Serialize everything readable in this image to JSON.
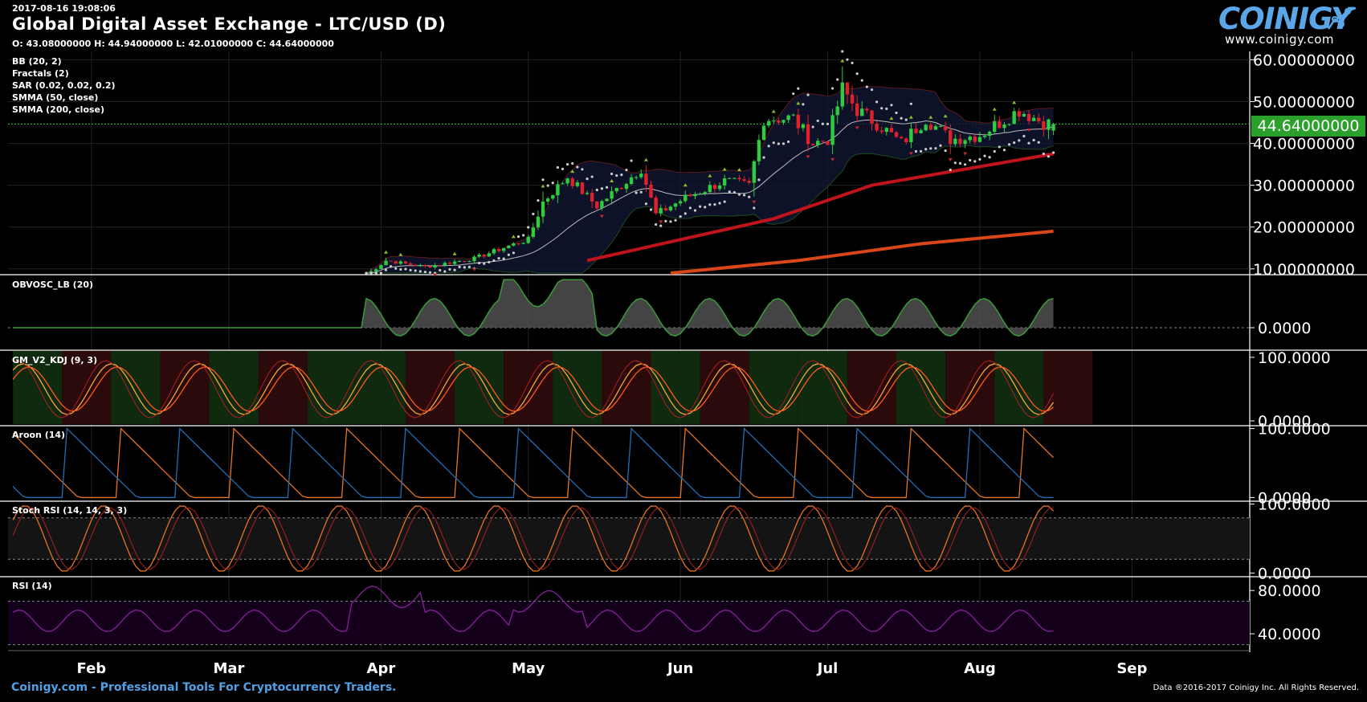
{
  "header": {
    "timestamp": "2017-08-16 19:08:06",
    "title": "Global Digital Asset Exchange - LTC/USD (D)",
    "ohlc": "O: 43.08000000 H: 44.94000000 L: 42.01000000 C: 44.64000000"
  },
  "logo": {
    "name": "COINIGY",
    "url": "www.coinigy.com"
  },
  "indicators": [
    "BB (20, 2)",
    "Fractals (2)",
    "SAR (0.02, 0.02, 0.2)",
    "SMMA (50, close)",
    "SMMA (200, close)"
  ],
  "panes": {
    "obv": "OBVOSC_LB (20)",
    "kdj": "GM_V2_KDJ (9, 3)",
    "aroon": "Aroon (14)",
    "stoch": "Stoch RSI (14, 14, 3, 3)",
    "rsi": "RSI (14)"
  },
  "footer": {
    "left": "Coinigy.com - Professional Tools For Cryptocurrency Traders.",
    "right": "Data ®2016-2017 Coinigy Inc. All Rights Reserved."
  },
  "colors": {
    "up": "#2ecc40",
    "down": "#e0212b",
    "smma50": "#c0131b",
    "smma200": "#d8461a",
    "price_badge": "#2ca02c",
    "aroon_up": "#e8741e",
    "aroon_down": "#1f6fb8",
    "rsi": "#8a1fa0",
    "kdj_k": "#f2a93b",
    "kdj_d": "#ff5a1a"
  },
  "chart_data": {
    "type": "candlestick",
    "symbol": "LTC/USD",
    "interval": "D",
    "last_price": "44.64000000",
    "x_labels": [
      "Feb",
      "Mar",
      "Apr",
      "May",
      "Jun",
      "Jul",
      "Aug",
      "Sep"
    ],
    "price_axis": {
      "ticks": [
        "10.00000000",
        "20.00000000",
        "30.00000000",
        "40.00000000",
        "50.00000000",
        "60.00000000"
      ],
      "tick_values": [
        10,
        20,
        30,
        40,
        50,
        60
      ],
      "ylim": [
        9,
        62
      ]
    },
    "x_range": [
      "2017-01-15",
      "2017-09-25"
    ],
    "candle_anchors": [
      {
        "date": "2017-03-29",
        "close": 8.5
      },
      {
        "date": "2017-04-02",
        "close": 12.0
      },
      {
        "date": "2017-04-10",
        "close": 10.5
      },
      {
        "date": "2017-04-20",
        "close": 12.5
      },
      {
        "date": "2017-04-27",
        "close": 15.5
      },
      {
        "date": "2017-05-01",
        "close": 17.0
      },
      {
        "date": "2017-05-04",
        "close": 26.0
      },
      {
        "date": "2017-05-09",
        "close": 32.0
      },
      {
        "date": "2017-05-15",
        "close": 25.0
      },
      {
        "date": "2017-05-20",
        "close": 30.0
      },
      {
        "date": "2017-05-24",
        "close": 34.0
      },
      {
        "date": "2017-05-27",
        "close": 23.0
      },
      {
        "date": "2017-06-02",
        "close": 27.0
      },
      {
        "date": "2017-06-10",
        "close": 31.0
      },
      {
        "date": "2017-06-15",
        "close": 30.0
      },
      {
        "date": "2017-06-18",
        "close": 46.0
      },
      {
        "date": "2017-06-24",
        "close": 46.0
      },
      {
        "date": "2017-06-28",
        "close": 40.0
      },
      {
        "date": "2017-07-01",
        "close": 41.0
      },
      {
        "date": "2017-07-04",
        "close": 53.0
      },
      {
        "date": "2017-07-07",
        "close": 48.0
      },
      {
        "date": "2017-07-12",
        "close": 44.0
      },
      {
        "date": "2017-07-16",
        "close": 40.0
      },
      {
        "date": "2017-07-21",
        "close": 46.0
      },
      {
        "date": "2017-07-26",
        "close": 41.0
      },
      {
        "date": "2017-08-01",
        "close": 42.0
      },
      {
        "date": "2017-08-05",
        "close": 45.0
      },
      {
        "date": "2017-08-09",
        "close": 48.0
      },
      {
        "date": "2017-08-14",
        "close": 45.0
      },
      {
        "date": "2017-08-16",
        "close": 44.64
      }
    ],
    "smma50": [
      {
        "date": "2017-05-13",
        "value": 12.0
      },
      {
        "date": "2017-06-01",
        "value": 17.0
      },
      {
        "date": "2017-06-20",
        "value": 22.0
      },
      {
        "date": "2017-07-10",
        "value": 30.0
      },
      {
        "date": "2017-08-16",
        "value": 37.5
      }
    ],
    "smma200": [
      {
        "date": "2017-05-30",
        "value": 9.0
      },
      {
        "date": "2017-06-25",
        "value": 12.0
      },
      {
        "date": "2017-07-20",
        "value": 16.0
      },
      {
        "date": "2017-08-16",
        "value": 19.0
      }
    ],
    "subpanes": [
      {
        "id": "obv",
        "ticks": [
          "0.0000"
        ],
        "tick_values": [
          0
        ],
        "ylim": [
          -1,
          2.5
        ]
      },
      {
        "id": "kdj",
        "ticks": [
          "100.0000",
          "0.0000"
        ],
        "tick_values": [
          100,
          0
        ],
        "ylim": [
          -5,
          110
        ]
      },
      {
        "id": "aroon",
        "ticks": [
          "100.0000",
          "0.0000"
        ],
        "tick_values": [
          100,
          0
        ],
        "ylim": [
          -3,
          103
        ]
      },
      {
        "id": "stoch",
        "ticks": [
          "100.0000",
          "0.0000"
        ],
        "tick_values": [
          100,
          0
        ],
        "ylim": [
          -3,
          103
        ],
        "bands": [
          80,
          20
        ]
      },
      {
        "id": "rsi",
        "ticks": [
          "80.0000",
          "40.0000"
        ],
        "tick_values": [
          80,
          40
        ],
        "ylim": [
          26,
          92
        ],
        "bands": [
          70,
          30
        ]
      }
    ]
  }
}
